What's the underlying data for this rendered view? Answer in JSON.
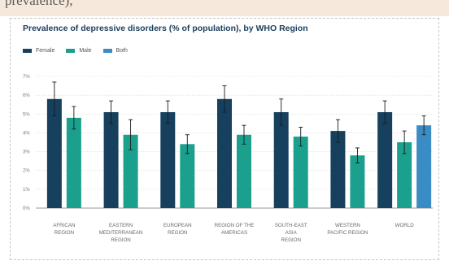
{
  "header_fragment": "prevalence),",
  "chart_data": {
    "type": "bar",
    "title": "Prevalence of depressive disorders (% of population), by WHO Region",
    "xlabel": "",
    "ylabel": "",
    "ylim": [
      0,
      7
    ],
    "yticks": [
      "0%",
      "1%",
      "2%",
      "3%",
      "4%",
      "5%",
      "6%",
      "7%"
    ],
    "grid": true,
    "legend_position": "top-left",
    "categories": [
      [
        "AFRICAN",
        "REGION"
      ],
      [
        "EASTERN",
        "MEDITERRANEAN",
        "REGION"
      ],
      [
        "EUROPEAN",
        "REGION"
      ],
      [
        "REGION OF THE",
        "AMERICAS"
      ],
      [
        "SOUTH-EAST",
        "ASIA",
        "REGION"
      ],
      [
        "WESTERN",
        "PACIFIC REGION"
      ],
      [
        "WORLD"
      ]
    ],
    "series": [
      {
        "name": "Female",
        "color": "#16405e",
        "values": [
          5.8,
          5.1,
          5.1,
          5.8,
          5.1,
          4.1,
          5.1
        ],
        "error": [
          0.9,
          0.6,
          0.6,
          0.7,
          0.7,
          0.6,
          0.6
        ]
      },
      {
        "name": "Male",
        "color": "#1aa08c",
        "values": [
          4.8,
          3.9,
          3.4,
          3.9,
          3.8,
          2.8,
          3.5
        ],
        "error": [
          0.6,
          0.8,
          0.5,
          0.5,
          0.5,
          0.4,
          0.6
        ]
      },
      {
        "name": "Both",
        "color": "#3a8cc4",
        "values": [
          null,
          null,
          null,
          null,
          null,
          null,
          4.4
        ],
        "error": [
          null,
          null,
          null,
          null,
          null,
          null,
          0.5
        ]
      }
    ]
  }
}
